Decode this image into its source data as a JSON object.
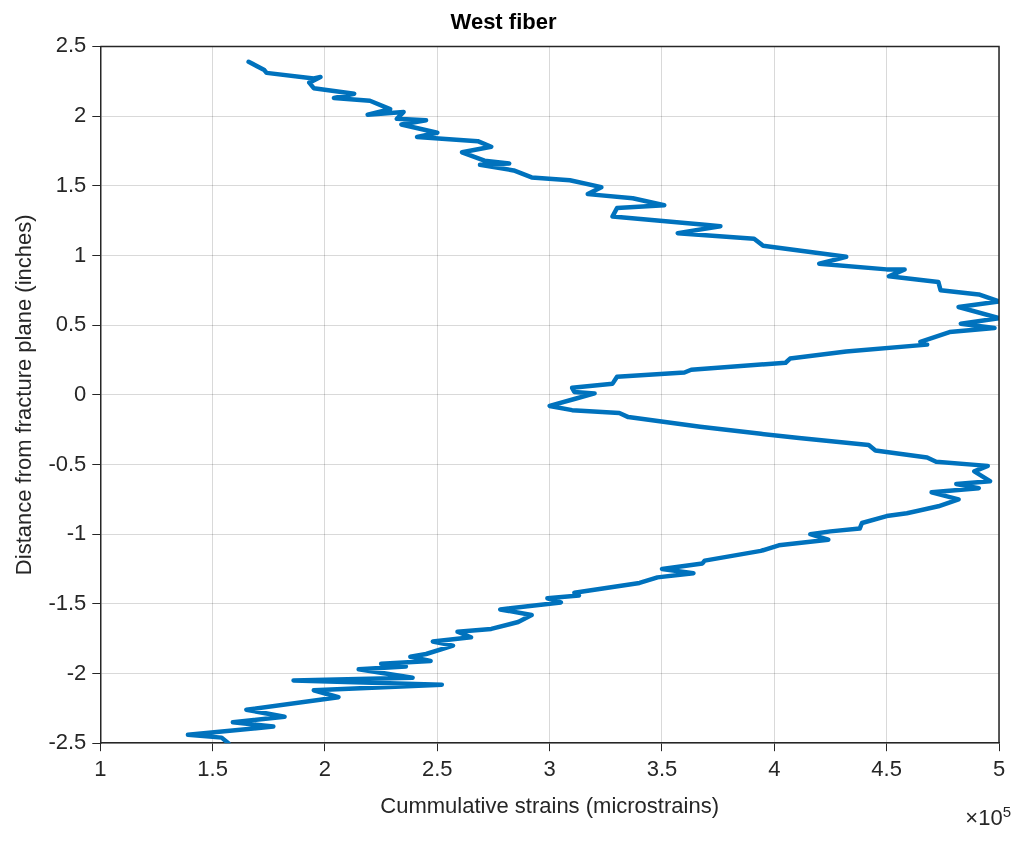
{
  "chart_data": {
    "type": "line",
    "title": "West fiber",
    "xlabel": "Cummulative strains (microstrains)",
    "ylabel": "Distance from fracture plane (inches)",
    "annotations": [
      "×10$^{5}$"
    ],
    "xlim": [
      1,
      5
    ],
    "xticks": [
      1,
      1.5,
      2,
      2.5,
      3,
      3.5,
      4,
      4.5,
      5
    ],
    "ylim": [
      -2.5,
      2.5
    ],
    "yticks": [
      -2.5,
      -2,
      -1.5,
      -1,
      -0.5,
      0,
      0.5,
      1,
      1.5,
      2,
      2.5
    ],
    "grid": true,
    "legend": false,
    "marker": "none",
    "line_style": "solid",
    "series": [
      {
        "color": "#0072bd",
        "x": [
          1.66,
          1.73,
          1.74,
          1.95,
          1.98,
          1.93,
          1.95,
          2.13,
          2.04,
          2.2,
          2.29,
          2.19,
          2.35,
          2.32,
          2.45,
          2.34,
          2.5,
          2.41,
          2.68,
          2.74,
          2.61,
          2.71,
          2.82,
          2.69,
          2.84,
          2.92,
          3.09,
          3.23,
          3.17,
          3.37,
          3.51,
          3.3,
          3.28,
          3.69,
          3.76,
          3.57,
          3.91,
          3.95,
          4.32,
          4.2,
          4.5,
          4.58,
          4.51,
          4.73,
          4.74,
          4.91,
          5,
          4.82,
          5,
          4.83,
          4.98,
          4.78,
          4.65,
          4.68,
          4.32,
          4.07,
          4.05,
          3.63,
          3.6,
          3.3,
          3.28,
          3.1,
          3.11,
          3.2,
          3.11,
          3,
          3.1,
          3.31,
          3.35,
          3.67,
          3.94,
          4.11,
          4.42,
          4.45,
          4.68,
          4.72,
          4.95,
          4.89,
          4.96,
          4.81,
          4.91,
          4.7,
          4.82,
          4.73,
          4.59,
          4.5,
          4.39,
          4.38,
          4.25,
          4.16,
          4.24,
          4.02,
          3.94,
          3.69,
          3.68,
          3.5,
          3.64,
          3.48,
          3.4,
          3.11,
          3.13,
          2.99,
          3.05,
          2.78,
          2.92,
          2.86,
          2.74,
          2.59,
          2.65,
          2.48,
          2.57,
          2.45,
          2.38,
          2.47,
          2.25,
          2.36,
          2.15,
          2.39,
          1.86,
          2.52,
          1.95,
          2.06,
          1.65,
          1.82,
          1.59,
          1.77,
          1.39,
          1.54,
          1.57
        ],
        "values": [
          2.39,
          2.33,
          2.31,
          2.27,
          2.28,
          2.24,
          2.2,
          2.16,
          2.13,
          2.11,
          2.05,
          2.01,
          2.03,
          1.98,
          1.97,
          1.94,
          1.88,
          1.85,
          1.82,
          1.78,
          1.74,
          1.68,
          1.66,
          1.65,
          1.61,
          1.56,
          1.54,
          1.49,
          1.44,
          1.41,
          1.36,
          1.34,
          1.28,
          1.22,
          1.21,
          1.16,
          1.12,
          1.07,
          0.99,
          0.94,
          0.9,
          0.9,
          0.85,
          0.81,
          0.75,
          0.72,
          0.67,
          0.63,
          0.55,
          0.51,
          0.48,
          0.45,
          0.38,
          0.36,
          0.31,
          0.26,
          0.23,
          0.18,
          0.16,
          0.13,
          0.08,
          0.05,
          0.02,
          0.01,
          -0.03,
          -0.08,
          -0.11,
          -0.13,
          -0.16,
          -0.23,
          -0.28,
          -0.31,
          -0.36,
          -0.4,
          -0.45,
          -0.48,
          -0.51,
          -0.55,
          -0.62,
          -0.64,
          -0.67,
          -0.7,
          -0.75,
          -0.8,
          -0.85,
          -0.87,
          -0.92,
          -0.96,
          -0.98,
          -1,
          -1.04,
          -1.08,
          -1.12,
          -1.19,
          -1.21,
          -1.25,
          -1.28,
          -1.31,
          -1.35,
          -1.42,
          -1.44,
          -1.46,
          -1.49,
          -1.54,
          -1.58,
          -1.63,
          -1.68,
          -1.7,
          -1.74,
          -1.77,
          -1.8,
          -1.86,
          -1.88,
          -1.91,
          -1.93,
          -1.95,
          -1.97,
          -2.03,
          -2.05,
          -2.08,
          -2.12,
          -2.17,
          -2.26,
          -2.31,
          -2.35,
          -2.38,
          -2.44,
          -2.46,
          -2.5
        ]
      }
    ]
  }
}
